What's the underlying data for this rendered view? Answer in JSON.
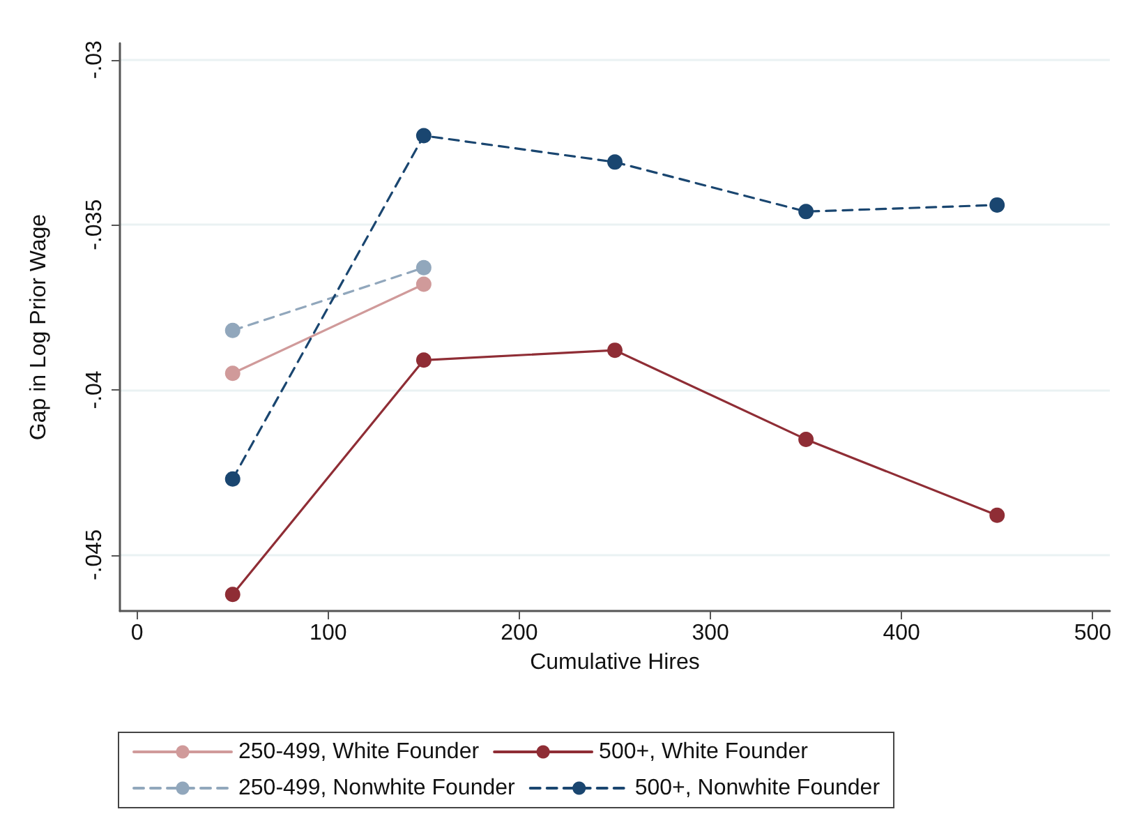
{
  "chart_data": {
    "type": "line",
    "xlabel": "Cumulative Hires",
    "ylabel": "Gap in Log Prior Wage",
    "xlim": [
      -9,
      509
    ],
    "xticks": [
      0,
      100,
      200,
      300,
      400,
      500
    ],
    "ylim": [
      -0.0467,
      -0.0295
    ],
    "yticks": [
      {
        "value": -0.045,
        "label": "-.045"
      },
      {
        "value": -0.04,
        "label": "-.04"
      },
      {
        "value": -0.035,
        "label": "-.035"
      },
      {
        "value": -0.03,
        "label": "-.03"
      }
    ],
    "grid": "y",
    "legend": "bottom",
    "marker": "circle",
    "series": [
      {
        "name": "250-499, White Founder",
        "color": "#d09a9a",
        "line_style": "solid",
        "x": [
          50,
          150
        ],
        "values": [
          -0.0395,
          -0.0368
        ]
      },
      {
        "name": "500+, White Founder",
        "color": "#8f2d35",
        "line_style": "solid",
        "x": [
          50,
          150,
          250,
          350,
          450
        ],
        "values": [
          -0.0462,
          -0.0391,
          -0.0388,
          -0.0415,
          -0.0438
        ]
      },
      {
        "name": "250-499, Nonwhite Founder",
        "color": "#91a7bc",
        "line_style": "dashed",
        "x": [
          50,
          150
        ],
        "values": [
          -0.0382,
          -0.0363
        ]
      },
      {
        "name": "500+, Nonwhite Founder",
        "color": "#1a4670",
        "line_style": "dashed",
        "x": [
          50,
          150,
          250,
          350,
          450
        ],
        "values": [
          -0.0427,
          -0.0323,
          -0.0331,
          -0.0346,
          -0.0344
        ]
      }
    ]
  }
}
